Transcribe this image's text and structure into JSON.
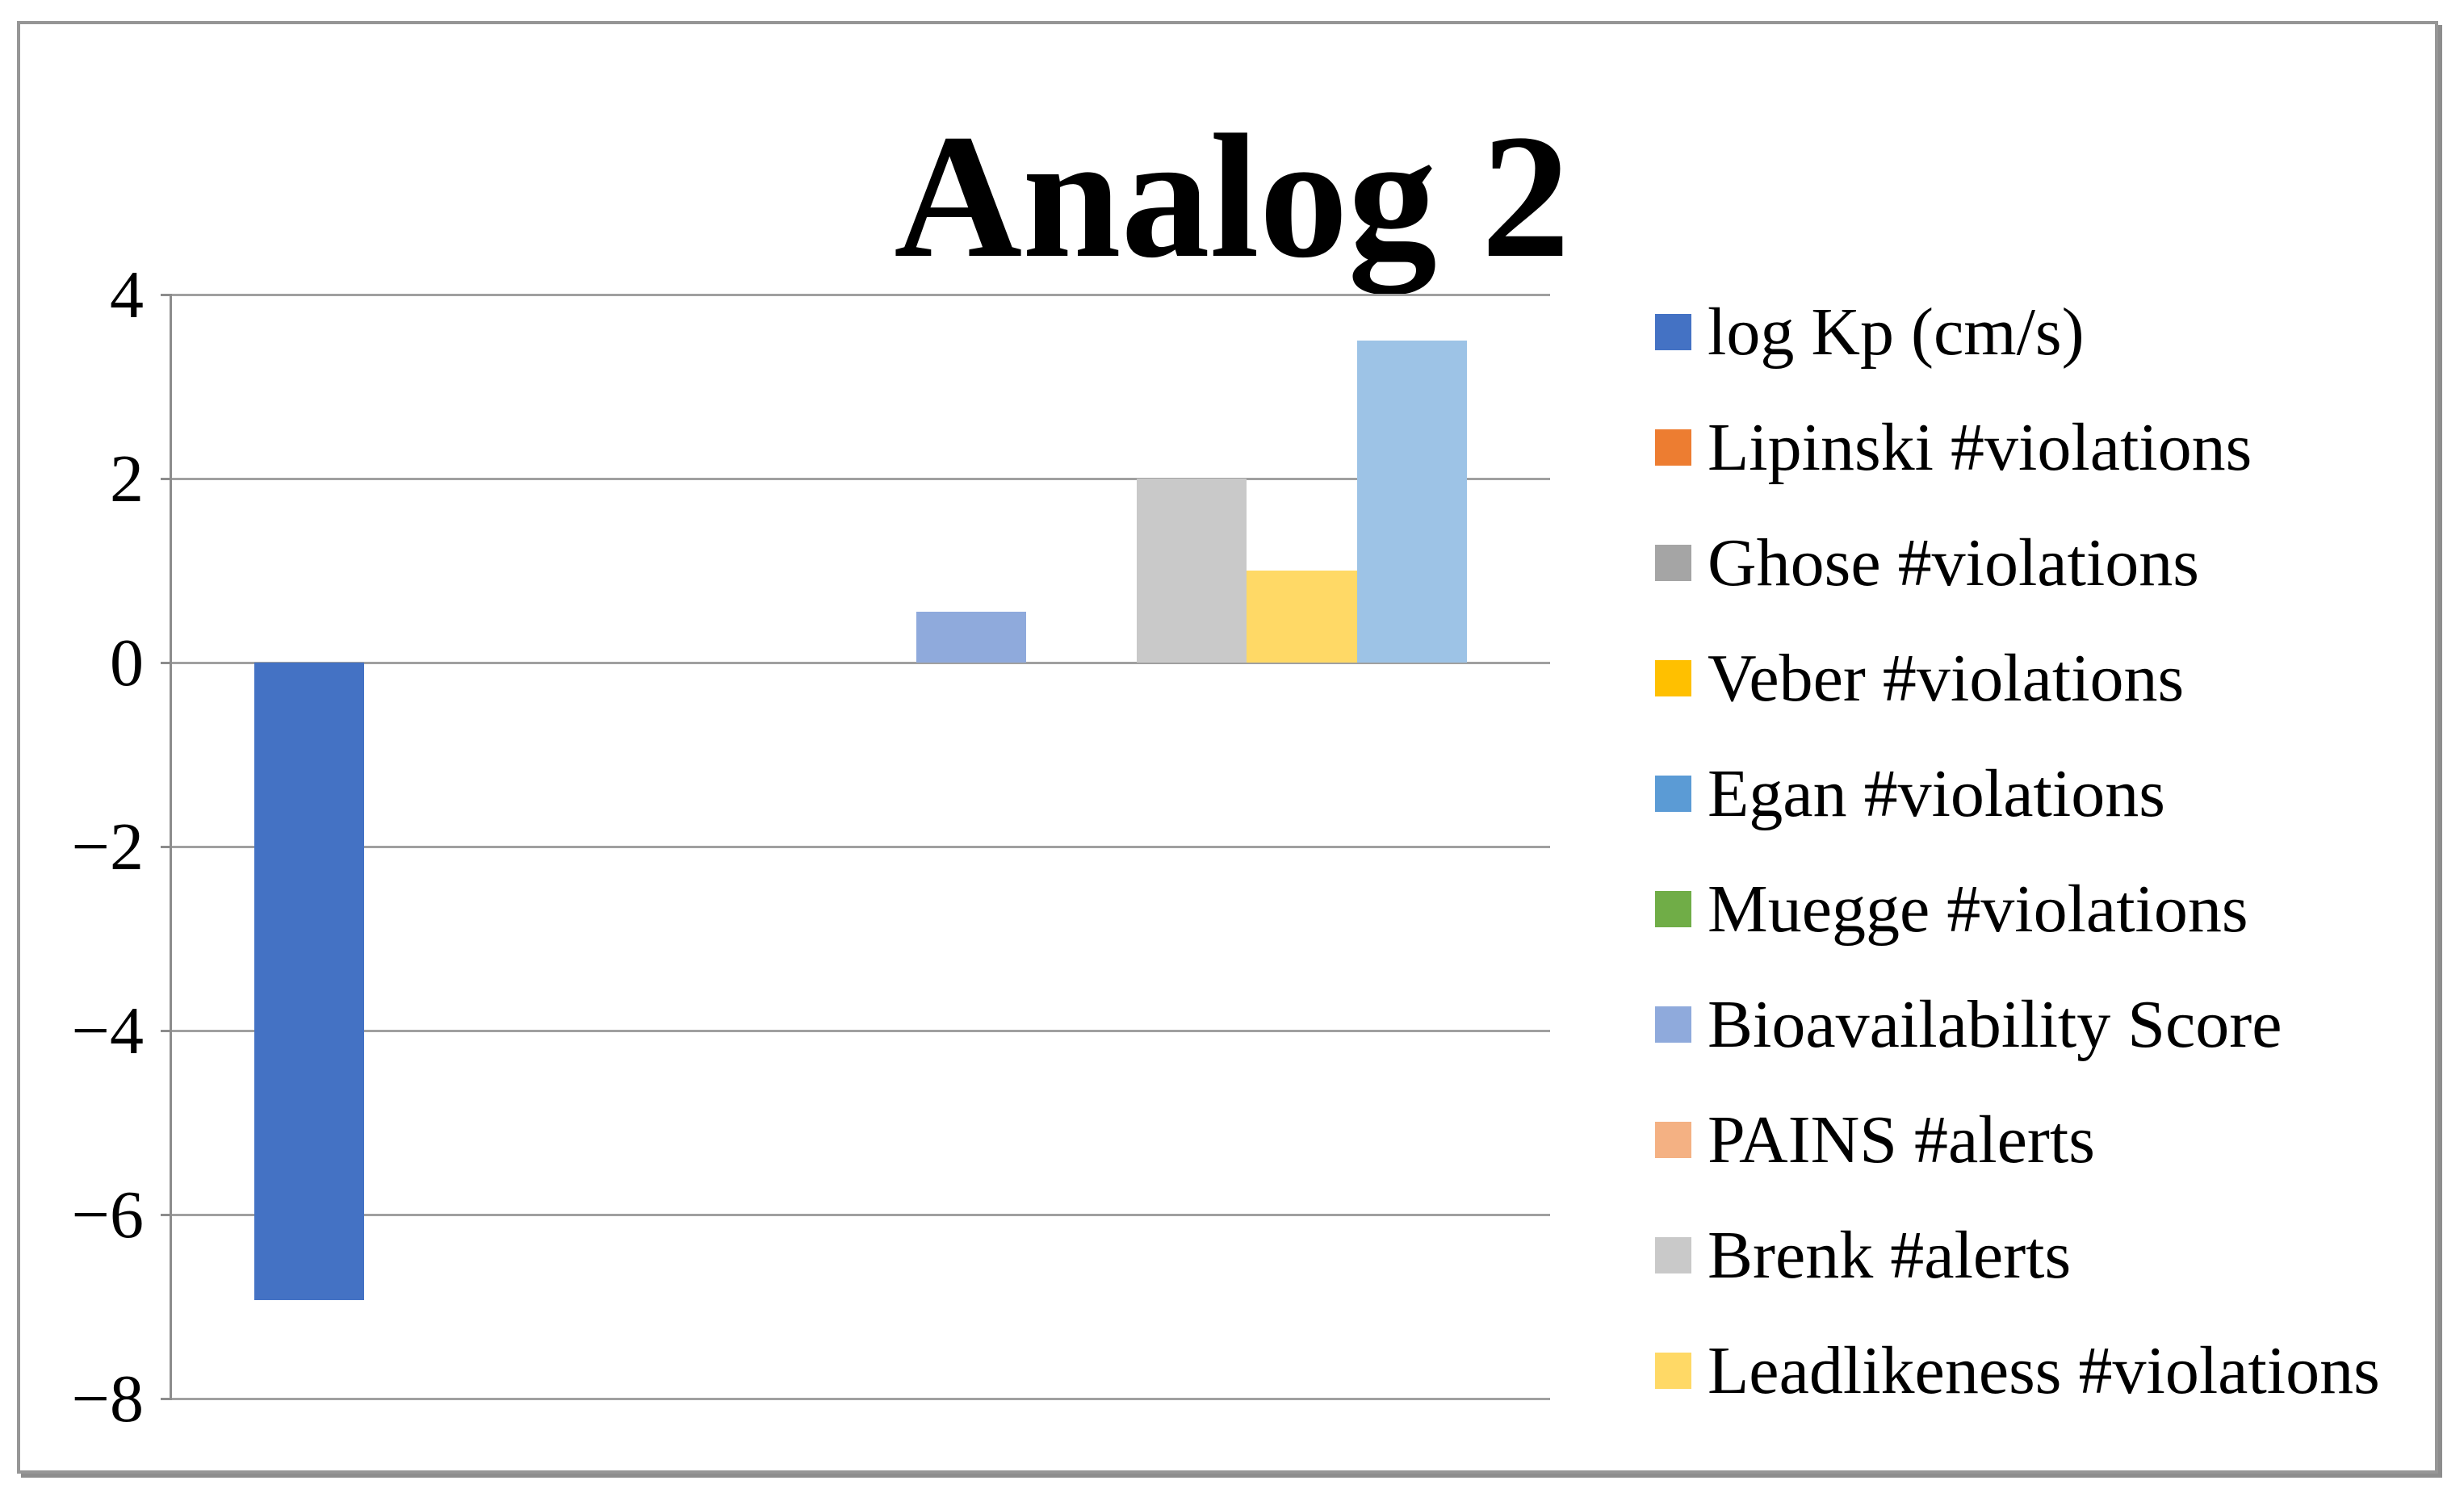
{
  "figure": {
    "background": "#ffffff",
    "frame_border_color": "#969696"
  },
  "chart_data": {
    "type": "bar",
    "title": "Analog 2",
    "categories": [
      ""
    ],
    "series": [
      {
        "name": "log Kp (cm/s)",
        "value": -6.93,
        "color": "#4472C4",
        "in_legend": true
      },
      {
        "name": "Lipinski #violations",
        "value": 0,
        "color": "#ED7D31",
        "in_legend": true
      },
      {
        "name": "Ghose #violations",
        "value": 0,
        "color": "#A5A5A5",
        "in_legend": true
      },
      {
        "name": "Veber #violations",
        "value": 0,
        "color": "#FFC000",
        "in_legend": true
      },
      {
        "name": "Egan #violations",
        "value": 0,
        "color": "#5B9BD5",
        "in_legend": true
      },
      {
        "name": "Muegge #violations",
        "value": 0,
        "color": "#70AD47",
        "in_legend": true
      },
      {
        "name": "Bioavailability Score",
        "value": 0.55,
        "color": "#8FAADC",
        "in_legend": true
      },
      {
        "name": "PAINS #alerts",
        "value": 0,
        "color": "#F4B183",
        "in_legend": true
      },
      {
        "name": "Brenk #alerts",
        "value": 2,
        "color": "#C9C9C9",
        "in_legend": true
      },
      {
        "name": "Leadlikeness #violations",
        "value": 1,
        "color": "#FFD966",
        "in_legend": true
      },
      {
        "name": "",
        "value": 3.5,
        "color": "#9DC3E6",
        "in_legend": false
      }
    ],
    "xlabel": "",
    "ylabel": "",
    "ylim": [
      -8,
      4
    ],
    "yticks": [
      4,
      2,
      0,
      -2,
      -4,
      -6,
      -8
    ],
    "ytick_labels": [
      "4",
      "2",
      "0",
      "−2",
      "−4",
      "−6",
      "−8"
    ],
    "grid": true,
    "legend_position": "right",
    "axis": {
      "gridline_color": "#a0a0a0",
      "axis_color": "#8c8c8c",
      "text_color": "#000000"
    },
    "notes": "Rightmost bar (≈3.5) has no corresponding legend entry; legend shows 10 of 11 series."
  }
}
